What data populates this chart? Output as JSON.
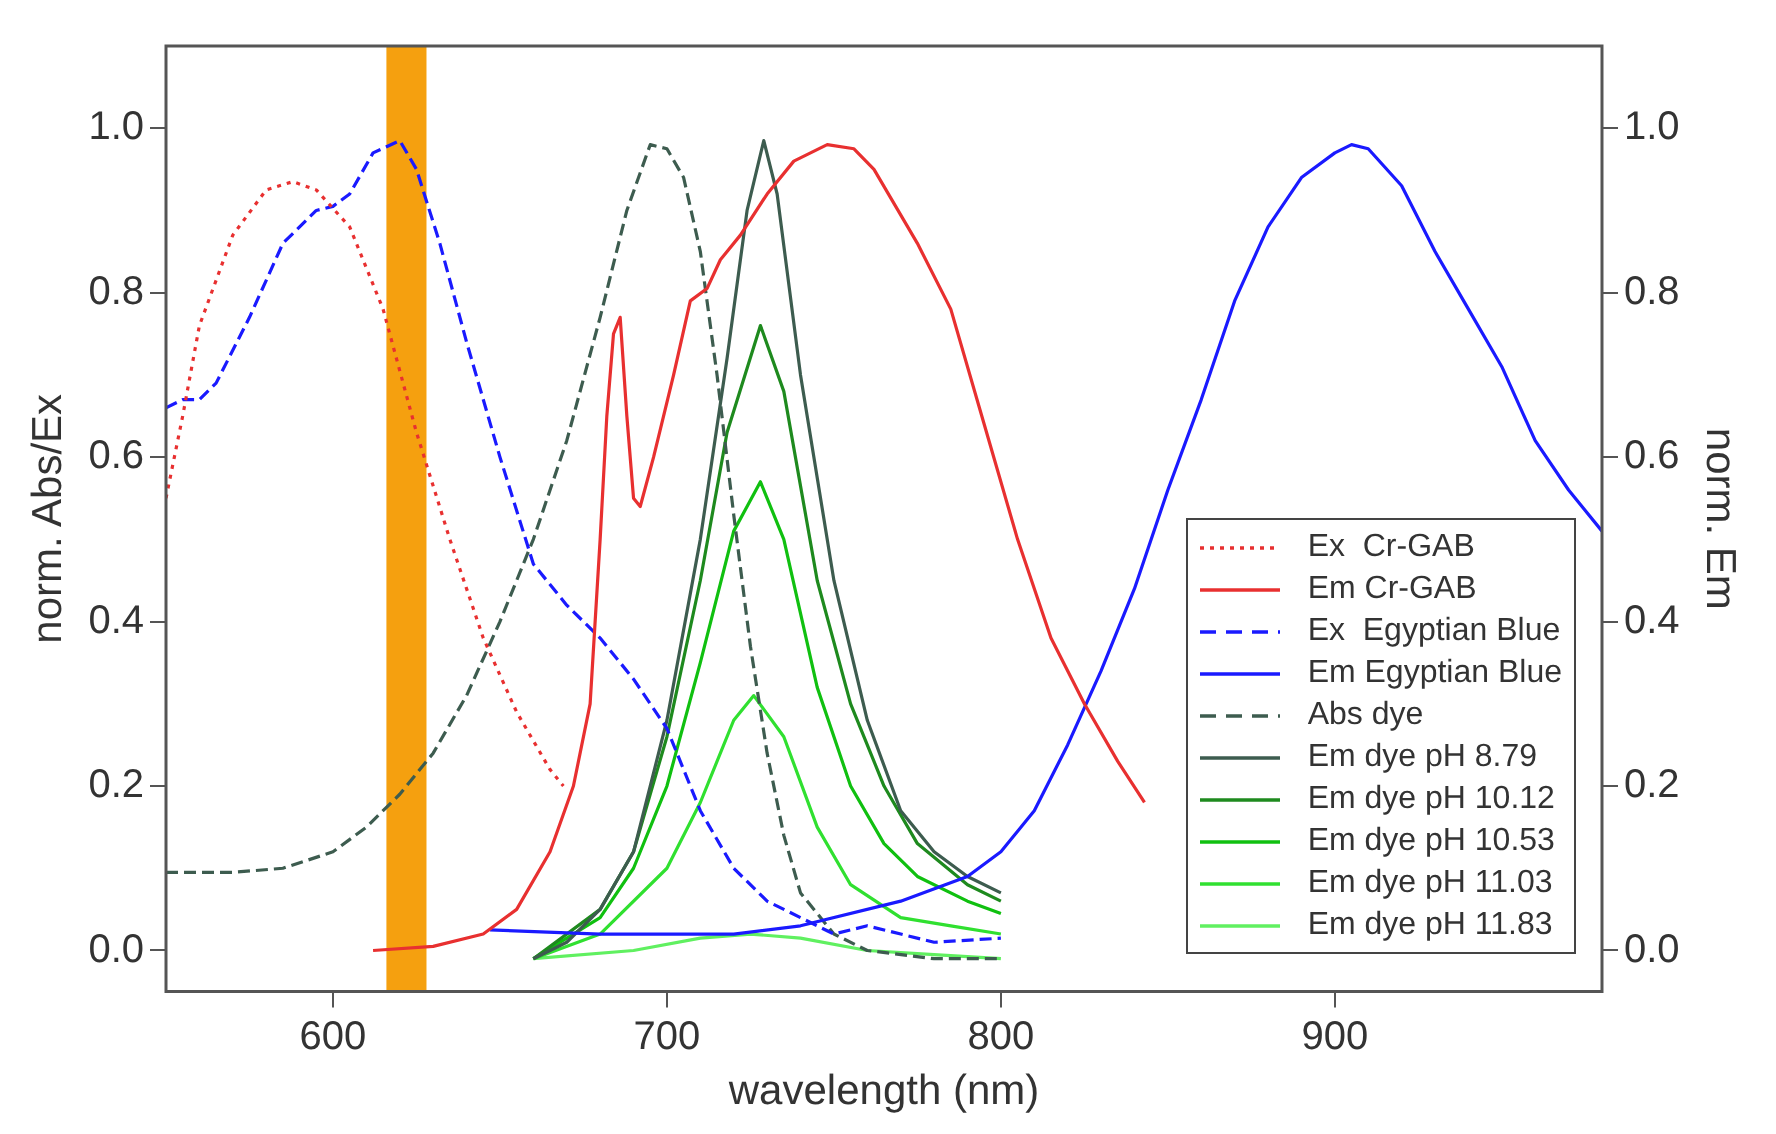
{
  "chart_data": {
    "type": "line",
    "xlabel": "wavelength (nm)",
    "ylabel": "norm. Abs/Ex",
    "y2label": "norm. Em",
    "xlim": [
      550,
      980
    ],
    "xticks": [
      600,
      700,
      800,
      900
    ],
    "ylim": [
      -0.05,
      1.1
    ],
    "yticks": [
      {
        "value": 0,
        "label": "0.0"
      },
      0.2,
      0.4,
      0.6,
      0.8,
      {
        "value": 1,
        "label": "1.0"
      }
    ],
    "y2lim": [
      -0.05,
      1.1
    ],
    "y2ticks": [
      {
        "value": 0,
        "label": "0.0"
      },
      0.2,
      0.4,
      0.6,
      0.8,
      {
        "value": 1,
        "label": "1.0"
      }
    ],
    "grid": false,
    "legend": "bottom right",
    "marker": "none",
    "bands": [
      {
        "axis": "x",
        "from": 616,
        "to": 628,
        "color": "#f5a00f"
      }
    ],
    "series": [
      {
        "name": "Ex  Cr-GAB",
        "color": "#e83030",
        "line_style": "dotted",
        "x": [
          550,
          555,
          560,
          570,
          580,
          588,
          595,
          605,
          615,
          625,
          635,
          645,
          655,
          665,
          669
        ],
        "values": [
          0.55,
          0.65,
          0.76,
          0.87,
          0.925,
          0.935,
          0.925,
          0.88,
          0.78,
          0.63,
          0.5,
          0.38,
          0.29,
          0.22,
          0.2
        ]
      },
      {
        "name": "Em Cr-GAB",
        "color": "#e83030",
        "line_style": "solid",
        "x": [
          612,
          630,
          645,
          655,
          665,
          672,
          677,
          680,
          682,
          684,
          686,
          688,
          690,
          692,
          696,
          702,
          707,
          712,
          716,
          722,
          730,
          738,
          748,
          756,
          762,
          775,
          785,
          795,
          805,
          815,
          825,
          835,
          843
        ],
        "values": [
          0.0,
          0.005,
          0.02,
          0.05,
          0.12,
          0.2,
          0.3,
          0.5,
          0.65,
          0.75,
          0.77,
          0.65,
          0.55,
          0.54,
          0.6,
          0.7,
          0.79,
          0.805,
          0.84,
          0.87,
          0.92,
          0.96,
          0.98,
          0.975,
          0.95,
          0.86,
          0.78,
          0.64,
          0.5,
          0.38,
          0.3,
          0.23,
          0.18
        ]
      },
      {
        "name": "Ex  Egyptian Blue",
        "color": "#1a1aff",
        "line_style": "dashed",
        "x": [
          550,
          555,
          560,
          565,
          575,
          585,
          595,
          600,
          605,
          612,
          620,
          625,
          632,
          640,
          650,
          660,
          670,
          680,
          690,
          700,
          710,
          720,
          730,
          740,
          750,
          760,
          770,
          780,
          800
        ],
        "values": [
          0.66,
          0.67,
          0.67,
          0.69,
          0.77,
          0.86,
          0.9,
          0.905,
          0.92,
          0.97,
          0.985,
          0.95,
          0.86,
          0.74,
          0.6,
          0.47,
          0.42,
          0.38,
          0.33,
          0.27,
          0.17,
          0.1,
          0.06,
          0.04,
          0.02,
          0.03,
          0.02,
          0.01,
          0.015
        ]
      },
      {
        "name": "Em Egyptian Blue",
        "color": "#1a1aff",
        "line_style": "solid",
        "x": [
          647,
          680,
          720,
          740,
          770,
          790,
          800,
          810,
          820,
          830,
          840,
          850,
          860,
          870,
          880,
          890,
          900,
          905,
          910,
          920,
          930,
          940,
          950,
          960,
          970,
          980
        ],
        "values": [
          0.025,
          0.02,
          0.02,
          0.03,
          0.06,
          0.09,
          0.12,
          0.17,
          0.25,
          0.34,
          0.44,
          0.56,
          0.67,
          0.79,
          0.88,
          0.94,
          0.97,
          0.98,
          0.975,
          0.93,
          0.85,
          0.78,
          0.71,
          0.62,
          0.56,
          0.51
        ]
      },
      {
        "name": "Abs dye",
        "color": "#3d5c4f",
        "line_style": "dashed",
        "x": [
          550,
          570,
          585,
          600,
          610,
          620,
          630,
          640,
          650,
          660,
          670,
          680,
          688,
          695,
          700,
          705,
          710,
          715,
          720,
          725,
          730,
          735,
          740,
          750,
          760,
          780,
          800
        ],
        "values": [
          0.095,
          0.095,
          0.1,
          0.12,
          0.15,
          0.19,
          0.24,
          0.31,
          0.4,
          0.5,
          0.62,
          0.77,
          0.9,
          0.98,
          0.975,
          0.94,
          0.85,
          0.7,
          0.53,
          0.37,
          0.24,
          0.14,
          0.07,
          0.02,
          0.0,
          -0.01,
          -0.01
        ]
      },
      {
        "name": "Em dye pH 8.79",
        "color": "#3d5c4f",
        "line_style": "solid",
        "x": [
          660,
          670,
          680,
          690,
          700,
          710,
          718,
          724,
          729,
          733,
          740,
          750,
          760,
          770,
          780,
          790,
          800
        ],
        "values": [
          -0.01,
          0.01,
          0.05,
          0.12,
          0.28,
          0.5,
          0.72,
          0.9,
          0.985,
          0.92,
          0.7,
          0.45,
          0.28,
          0.17,
          0.12,
          0.09,
          0.07
        ]
      },
      {
        "name": "Em dye pH 10.12",
        "color": "#1e8a1e",
        "line_style": "solid",
        "x": [
          660,
          680,
          690,
          700,
          710,
          718,
          728,
          735,
          745,
          755,
          765,
          775,
          790,
          800
        ],
        "values": [
          -0.01,
          0.05,
          0.12,
          0.26,
          0.45,
          0.63,
          0.76,
          0.68,
          0.45,
          0.3,
          0.2,
          0.13,
          0.08,
          0.06
        ]
      },
      {
        "name": "Em dye pH 10.53",
        "color": "#10c010",
        "line_style": "solid",
        "x": [
          660,
          680,
          690,
          700,
          710,
          720,
          728,
          735,
          745,
          755,
          765,
          775,
          790,
          800
        ],
        "values": [
          -0.01,
          0.04,
          0.1,
          0.2,
          0.35,
          0.51,
          0.57,
          0.5,
          0.32,
          0.2,
          0.13,
          0.09,
          0.06,
          0.045
        ]
      },
      {
        "name": "Em dye pH 11.03",
        "color": "#30e030",
        "line_style": "solid",
        "x": [
          660,
          680,
          700,
          710,
          720,
          726,
          735,
          745,
          755,
          770,
          785,
          800
        ],
        "values": [
          -0.01,
          0.02,
          0.1,
          0.18,
          0.28,
          0.31,
          0.26,
          0.15,
          0.08,
          0.04,
          0.03,
          0.02
        ]
      },
      {
        "name": "Em dye pH 11.83",
        "color": "#60f060",
        "line_style": "solid",
        "x": [
          660,
          690,
          710,
          725,
          740,
          760,
          780,
          800
        ],
        "values": [
          -0.01,
          0.0,
          0.015,
          0.02,
          0.015,
          0.0,
          -0.005,
          -0.01
        ]
      }
    ]
  }
}
